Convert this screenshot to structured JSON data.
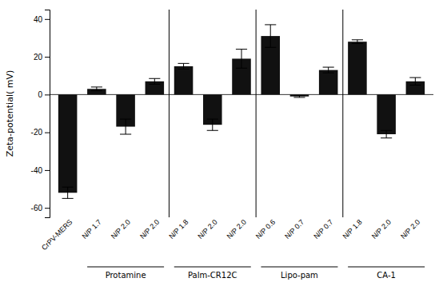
{
  "chart_data": {
    "type": "bar",
    "categories": [
      "CrPV-MERS",
      "N/P 1.7",
      "N/P 2.0",
      "N/P 2.0",
      "N/P 1.8",
      "N/P 2.0",
      "N/P 2.0",
      "N/P 0.6",
      "N/P 0.7",
      "N/P 0.7",
      "N/P 1.8",
      "N/P 2.0",
      "N/P 2.0"
    ],
    "groups": [
      null,
      "Protamine",
      "Protamine",
      "Protamine",
      "Palm-CR12C",
      "Palm-CR12C",
      "Palm-CR12C",
      "Lipo-pam",
      "Lipo-pam",
      "Lipo-pam",
      "CA-1",
      "CA-1",
      "CA-1"
    ],
    "values": [
      -52,
      3,
      -17,
      7,
      15,
      -16,
      19,
      31,
      -1,
      13,
      28,
      -21,
      7
    ],
    "errors": [
      3,
      1,
      4,
      1.5,
      1.5,
      3,
      5,
      6,
      0.5,
      1.5,
      1,
      2,
      2
    ],
    "color": "#111111",
    "ylabel": "Zeta-potential( mV)",
    "ylim": [
      -65,
      45
    ],
    "yticks": [
      -60,
      -40,
      -20,
      0,
      20,
      40
    ],
    "grid": false
  }
}
